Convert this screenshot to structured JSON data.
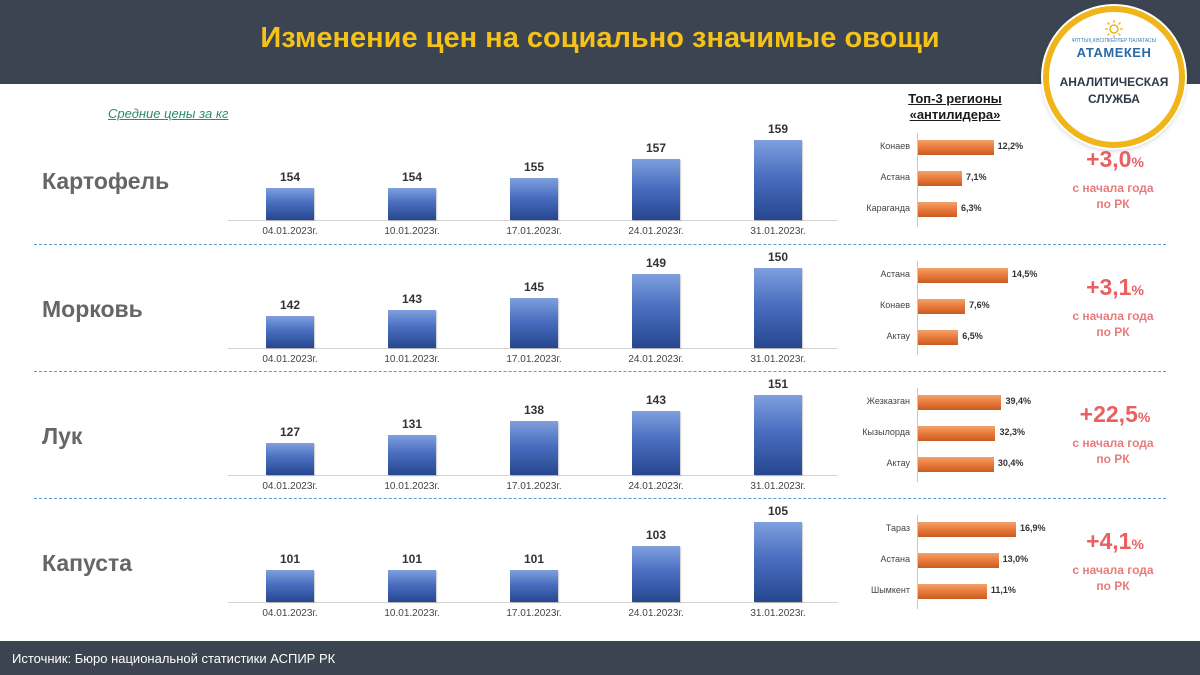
{
  "title": "Изменение цен на социально значимые овощи",
  "subtitle": "Средние цены за кг",
  "logo": {
    "small": "ҰЛТТЫҚ КӘСІПКЕРЛЕР ПАЛАТАСЫ",
    "org": "АТАМЕКЕН",
    "service_line1": "АНАЛИТИЧЕСКАЯ",
    "service_line2": "СЛУЖБА"
  },
  "top3_title_line1": "Топ-3 регионы",
  "top3_title_line2": "«антилидера»",
  "change_note_line1": "с начала года",
  "change_note_line2": "по РК",
  "source": "Источник: Бюро национальной  статистики  АСПИР РК",
  "colors": {
    "header_bg": "#3b4450",
    "title": "#f5c21a",
    "bar": "#4a6fc0",
    "hbar": "#e8793a",
    "change": "#ea5f5f"
  },
  "chart_data": [
    {
      "type": "bar",
      "name": "Картофель",
      "categories": [
        "04.01.2023г.",
        "10.01.2023г.",
        "17.01.2023г.",
        "24.01.2023г.",
        "31.01.2023г."
      ],
      "values": [
        154,
        154,
        155,
        157,
        159
      ],
      "regions": {
        "type": "bar-horizontal",
        "names": [
          "Конаев",
          "Астана",
          "Караганда"
        ],
        "values": [
          12.2,
          7.1,
          6.3
        ],
        "labels": [
          "12,2%",
          "7,1%",
          "6,3%"
        ]
      },
      "change": {
        "value": "+3,0",
        "unit": "%"
      }
    },
    {
      "type": "bar",
      "name": "Морковь",
      "categories": [
        "04.01.2023г.",
        "10.01.2023г.",
        "17.01.2023г.",
        "24.01.2023г.",
        "31.01.2023г."
      ],
      "values": [
        142,
        143,
        145,
        149,
        150
      ],
      "regions": {
        "type": "bar-horizontal",
        "names": [
          "Астана",
          "Конаев",
          "Актау"
        ],
        "values": [
          14.5,
          7.6,
          6.5
        ],
        "labels": [
          "14,5%",
          "7,6%",
          "6,5%"
        ]
      },
      "change": {
        "value": "+3,1",
        "unit": "%"
      }
    },
    {
      "type": "bar",
      "name": "Лук",
      "categories": [
        "04.01.2023г.",
        "10.01.2023г.",
        "17.01.2023г.",
        "24.01.2023г.",
        "31.01.2023г."
      ],
      "values": [
        127,
        131,
        138,
        143,
        151
      ],
      "regions": {
        "type": "bar-horizontal",
        "names": [
          "Жезказган",
          "Кызылорда",
          "Актау"
        ],
        "values": [
          39.4,
          32.3,
          30.4
        ],
        "labels": [
          "39,4%",
          "32,3%",
          "30,4%"
        ]
      },
      "change": {
        "value": "+22,5",
        "unit": "%"
      }
    },
    {
      "type": "bar",
      "name": "Капуста",
      "categories": [
        "04.01.2023г.",
        "10.01.2023г.",
        "17.01.2023г.",
        "24.01.2023г.",
        "31.01.2023г."
      ],
      "values": [
        101,
        101,
        101,
        103,
        105
      ],
      "regions": {
        "type": "bar-horizontal",
        "names": [
          "Тараз",
          "Астана",
          "Шымкент"
        ],
        "values": [
          16.9,
          13.0,
          11.1
        ],
        "labels": [
          "16,9%",
          "13,0%",
          "11,1%"
        ]
      },
      "change": {
        "value": "+4,1",
        "unit": "%"
      }
    }
  ]
}
